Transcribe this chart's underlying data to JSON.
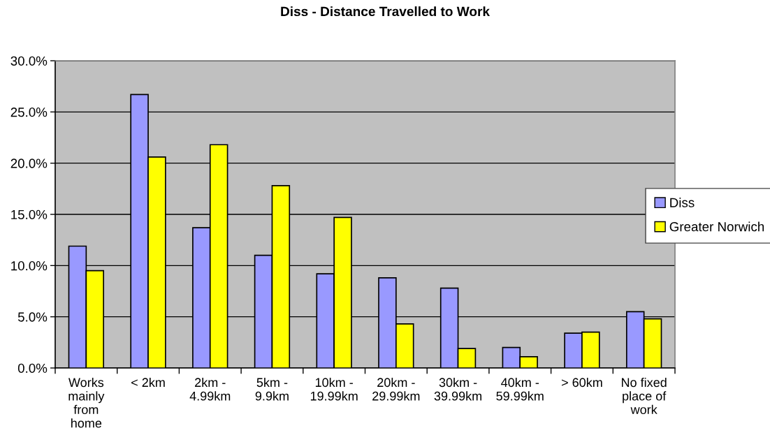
{
  "chart_data": {
    "type": "bar",
    "title": "Diss - Distance Travelled to Work",
    "categories": [
      "Works\nmainly\nfrom\nhome",
      "< 2km",
      "2km -\n4.99km",
      "5km -\n9.9km",
      "10km -\n19.99km",
      "20km -\n29.99km",
      "30km -\n39.99km",
      "40km -\n59.99km",
      "> 60km",
      "No fixed\nplace of\nwork"
    ],
    "series": [
      {
        "name": "Diss",
        "color": "#9999ff",
        "values": [
          11.9,
          26.7,
          13.7,
          11.0,
          9.2,
          8.8,
          7.8,
          2.0,
          3.4,
          5.5
        ]
      },
      {
        "name": "Greater Norwich",
        "color": "#ffff00",
        "values": [
          9.5,
          20.6,
          21.8,
          17.8,
          14.7,
          4.3,
          1.9,
          1.1,
          3.5,
          4.8
        ]
      }
    ],
    "ylim": [
      0,
      30
    ],
    "yticks": [
      {
        "value": 0,
        "label": "0.0%"
      },
      {
        "value": 5,
        "label": "5.0%"
      },
      {
        "value": 10,
        "label": "10.0%"
      },
      {
        "value": 15,
        "label": "15.0%"
      },
      {
        "value": 20,
        "label": "20.0%"
      },
      {
        "value": 25,
        "label": "25.0%"
      },
      {
        "value": 30,
        "label": "30.0%"
      }
    ],
    "grid": "y",
    "legend": "right"
  }
}
